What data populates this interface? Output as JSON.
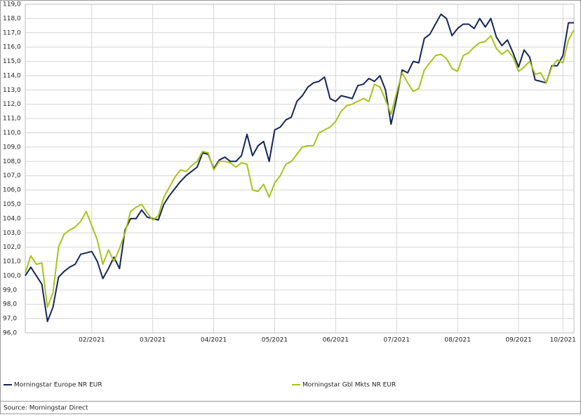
{
  "chart_data": {
    "type": "line",
    "categories": [
      null,
      null,
      null,
      null,
      null,
      null,
      null,
      null,
      null,
      null,
      null,
      null,
      "02/2021",
      null,
      null,
      null,
      null,
      null,
      null,
      null,
      null,
      null,
      null,
      "03/2021",
      null,
      null,
      null,
      null,
      null,
      null,
      null,
      null,
      null,
      null,
      "04/2021",
      null,
      null,
      null,
      null,
      null,
      null,
      null,
      null,
      null,
      null,
      "05/2021",
      null,
      null,
      null,
      null,
      null,
      null,
      null,
      null,
      null,
      null,
      "06/2021",
      null,
      null,
      null,
      null,
      null,
      null,
      null,
      null,
      null,
      null,
      "07/2021",
      null,
      null,
      null,
      null,
      null,
      null,
      null,
      null,
      null,
      null,
      "08/2021",
      null,
      null,
      null,
      null,
      null,
      null,
      null,
      null,
      null,
      null,
      "09/2021",
      null,
      null,
      null,
      null,
      null,
      null,
      null,
      "10/2021",
      null,
      null
    ],
    "series": [
      {
        "name": "Morningstar Europe NR EUR",
        "color": "#14265a",
        "values": [
          100.0,
          100.6,
          100.0,
          99.4,
          96.8,
          97.8,
          99.9,
          100.3,
          100.6,
          100.8,
          101.5,
          101.6,
          101.7,
          101.0,
          99.8,
          100.5,
          101.3,
          100.5,
          103.2,
          104.0,
          104.0,
          104.6,
          104.1,
          104.0,
          103.9,
          105.0,
          105.6,
          106.1,
          106.6,
          107.0,
          107.3,
          107.6,
          108.6,
          108.5,
          107.5,
          108.1,
          108.3,
          108.0,
          108.0,
          108.4,
          109.9,
          108.4,
          109.1,
          109.4,
          108.0,
          110.2,
          110.4,
          110.9,
          111.1,
          112.2,
          112.6,
          113.2,
          113.5,
          113.6,
          113.9,
          112.4,
          112.2,
          112.6,
          112.5,
          112.4,
          113.3,
          113.4,
          113.8,
          113.6,
          114.0,
          113.0,
          110.6,
          112.4,
          114.4,
          114.2,
          115.0,
          114.9,
          116.6,
          116.9,
          117.6,
          118.3,
          118.0,
          116.8,
          117.3,
          117.6,
          117.6,
          117.3,
          118.0,
          117.4,
          118.0,
          116.7,
          116.1,
          116.5,
          115.6,
          114.6,
          115.8,
          115.3,
          113.7,
          113.6,
          113.5,
          114.7,
          114.7,
          115.4,
          117.7,
          117.7
        ]
      },
      {
        "name": "Morningstar Gbl Mkts NR EUR",
        "color": "#a8c21c",
        "values": [
          100.2,
          101.4,
          100.8,
          100.9,
          97.8,
          98.8,
          102.0,
          102.9,
          103.2,
          103.4,
          103.8,
          104.5,
          103.5,
          102.5,
          100.8,
          101.8,
          101.0,
          101.9,
          103.0,
          104.5,
          104.8,
          105.0,
          104.4,
          103.9,
          104.2,
          105.5,
          106.2,
          106.9,
          107.4,
          107.3,
          107.7,
          108.0,
          108.7,
          108.6,
          107.4,
          108.0,
          108.0,
          107.9,
          107.6,
          107.9,
          107.8,
          106.0,
          105.9,
          106.4,
          105.5,
          106.5,
          107.0,
          107.8,
          108.0,
          108.5,
          109.0,
          109.1,
          109.1,
          110.0,
          110.2,
          110.4,
          110.8,
          111.5,
          111.9,
          112.0,
          112.2,
          112.4,
          112.2,
          113.4,
          113.2,
          112.3,
          111.3,
          112.8,
          114.2,
          113.5,
          112.9,
          113.1,
          114.4,
          114.9,
          115.4,
          115.5,
          115.2,
          114.5,
          114.3,
          115.4,
          115.6,
          116.0,
          116.3,
          116.4,
          116.8,
          115.9,
          115.5,
          115.8,
          115.3,
          114.3,
          114.6,
          115.0,
          114.1,
          114.2,
          113.5,
          114.6,
          115.1,
          114.9,
          116.5,
          117.2
        ]
      }
    ],
    "ylim": [
      96,
      119
    ],
    "yticks": [
      {
        "value": 96,
        "label": "96,0"
      },
      {
        "value": 97,
        "label": "97,0"
      },
      {
        "value": 98,
        "label": "98,0"
      },
      {
        "value": 99,
        "label": "99,0"
      },
      {
        "value": 100,
        "label": "100,0"
      },
      {
        "value": 101,
        "label": "101,0"
      },
      {
        "value": 102,
        "label": "102,0"
      },
      {
        "value": 103,
        "label": "103,0"
      },
      {
        "value": 104,
        "label": "104,0"
      },
      {
        "value": 105,
        "label": "105,0"
      },
      {
        "value": 106,
        "label": "106,0"
      },
      {
        "value": 107,
        "label": "107,0"
      },
      {
        "value": 108,
        "label": "108,0"
      },
      {
        "value": 109,
        "label": "109,0"
      },
      {
        "value": 110,
        "label": "110,0"
      },
      {
        "value": 111,
        "label": "111,0"
      },
      {
        "value": 112,
        "label": "112,0"
      },
      {
        "value": 113,
        "label": "113,0"
      },
      {
        "value": 114,
        "label": "114,0"
      },
      {
        "value": 115,
        "label": "115,0"
      },
      {
        "value": 116,
        "label": "116,0"
      },
      {
        "value": 117,
        "label": "117,0"
      },
      {
        "value": 118,
        "label": "118,0"
      },
      {
        "value": 119,
        "label": "119,0"
      }
    ],
    "grid": true,
    "legend": "bottom",
    "source": "Source: Morningstar Direct"
  }
}
